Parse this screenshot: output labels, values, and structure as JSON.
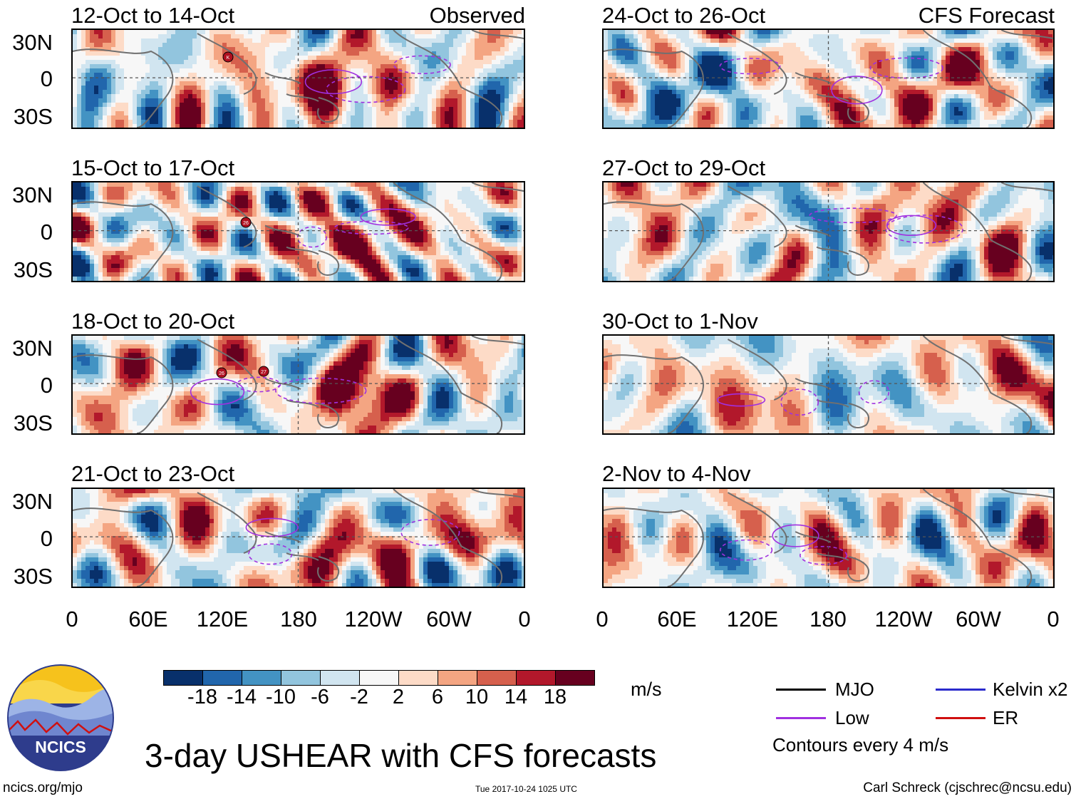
{
  "panels": [
    {
      "title": "12-Oct to 14-Oct",
      "corner": "Observed",
      "seed": 1,
      "side": "left"
    },
    {
      "title": "15-Oct to 17-Oct",
      "corner": "",
      "seed": 2,
      "side": "left"
    },
    {
      "title": "18-Oct to 20-Oct",
      "corner": "",
      "seed": 3,
      "side": "left"
    },
    {
      "title": "21-Oct to 23-Oct",
      "corner": "",
      "seed": 4,
      "side": "left"
    },
    {
      "title": "24-Oct to 26-Oct",
      "corner": "CFS Forecast",
      "seed": 5,
      "side": "right"
    },
    {
      "title": "27-Oct to 29-Oct",
      "corner": "",
      "seed": 6,
      "side": "right"
    },
    {
      "title": "30-Oct to 1-Nov",
      "corner": "",
      "seed": 7,
      "side": "right"
    },
    {
      "title": "2-Nov to 4-Nov",
      "corner": "",
      "seed": 8,
      "side": "right"
    }
  ],
  "lat_labels": [
    "30N",
    "0",
    "30S"
  ],
  "lon_labels": [
    "0",
    "60E",
    "120E",
    "180",
    "120W",
    "60W",
    "0"
  ],
  "storm_markers": [
    {
      "panel": 0,
      "label": "K"
    },
    {
      "panel": 1,
      "label": "26"
    },
    {
      "panel": 2,
      "label": "26"
    },
    {
      "panel": 2,
      "label": "27"
    }
  ],
  "colorbar": {
    "colors": [
      "#08306b",
      "#2166ac",
      "#4393c3",
      "#92c5de",
      "#d1e5f0",
      "#f7f7f7",
      "#fddbc7",
      "#f4a582",
      "#d6604d",
      "#b2182b",
      "#67001f"
    ],
    "ticks": [
      "-18",
      "-14",
      "-10",
      "-6",
      "-2",
      "2",
      "6",
      "10",
      "14",
      "18"
    ],
    "units": "m/s"
  },
  "legend": {
    "items": [
      {
        "label": "MJO",
        "color": "#000000"
      },
      {
        "label": "Kelvin x2",
        "color": "#2b2bcc"
      },
      {
        "label": "Low",
        "color": "#a030e0"
      },
      {
        "label": "ER",
        "color": "#d01010"
      }
    ],
    "note": "Contours every 4 m/s"
  },
  "logo": {
    "text": "NCICS"
  },
  "footer": {
    "title": "3-day USHEAR with CFS forecasts",
    "url": "ncics.org/mjo",
    "timestamp": "Tue 2017-10-24 1025 UTC",
    "author": "Carl Schreck (cjschrec@ncsu.edu)"
  }
}
